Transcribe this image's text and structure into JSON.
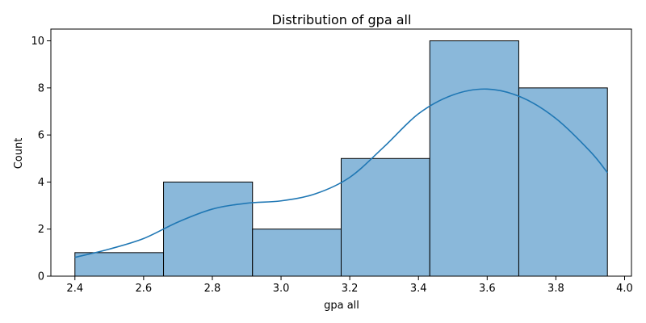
{
  "chart_data": {
    "type": "bar",
    "title": "Distribution of gpa all",
    "xlabel": "gpa all",
    "ylabel": "Count",
    "bins": [
      {
        "start": 2.4,
        "end": 2.658,
        "count": 1
      },
      {
        "start": 2.658,
        "end": 2.917,
        "count": 4
      },
      {
        "start": 2.917,
        "end": 3.175,
        "count": 2
      },
      {
        "start": 3.175,
        "end": 3.433,
        "count": 5
      },
      {
        "start": 3.433,
        "end": 3.692,
        "count": 10
      },
      {
        "start": 3.692,
        "end": 3.95,
        "count": 8
      }
    ],
    "kde": {
      "x": [
        2.4,
        2.5,
        2.6,
        2.7,
        2.8,
        2.9,
        3.0,
        3.1,
        3.2,
        3.3,
        3.4,
        3.5,
        3.6,
        3.7,
        3.8,
        3.9,
        3.95
      ],
      "y": [
        0.8,
        1.15,
        1.6,
        2.3,
        2.85,
        3.1,
        3.2,
        3.5,
        4.2,
        5.5,
        6.9,
        7.7,
        7.95,
        7.6,
        6.7,
        5.3,
        4.4
      ]
    },
    "xlim": [
      2.33,
      4.02
    ],
    "ylim": [
      0,
      10.5
    ],
    "xticks": [
      "2.4",
      "2.6",
      "2.8",
      "3.0",
      "3.2",
      "3.4",
      "3.6",
      "3.8",
      "4.0"
    ],
    "yticks": [
      "0",
      "2",
      "4",
      "6",
      "8",
      "10"
    ],
    "bar_color": "#8ab8da",
    "bar_edge_color": "#000000",
    "kde_color": "#1f77b4",
    "grid": false,
    "legend": "none"
  }
}
